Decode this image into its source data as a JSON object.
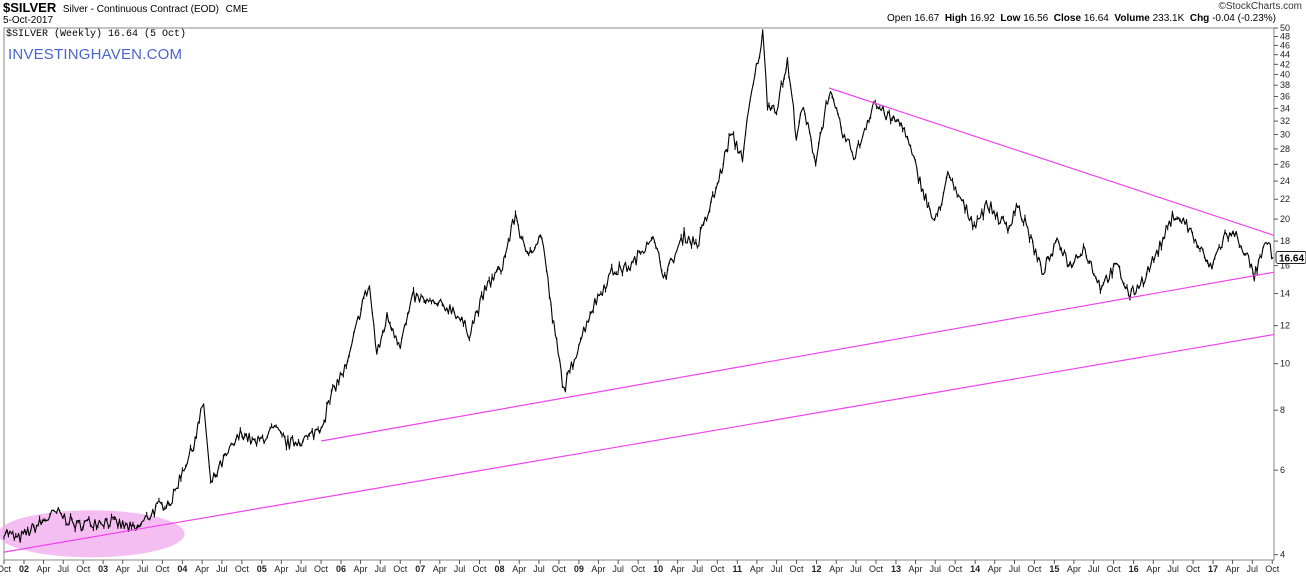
{
  "header": {
    "symbol": "$SILVER",
    "description": "Silver - Continuous Contract (EOD)",
    "exchange": "CME",
    "date": "5-Oct-2017",
    "brand": "©StockCharts.com",
    "plot_label": "$SILVER (Weekly) 16.64 (5 Oct)",
    "ohlc": {
      "open_label": "Open",
      "open": "16.67",
      "high_label": "High",
      "high": "16.92",
      "low_label": "Low",
      "low": "16.56",
      "close_label": "Close",
      "close": "16.64",
      "volume_label": "Volume",
      "volume": "233.1K",
      "chg_label": "Chg",
      "chg": "-0.04 (-0.23%)"
    }
  },
  "watermark": "INVESTINGHAVEN.COM",
  "last_price_label": "16.64",
  "colors": {
    "price": "#000000",
    "trendline": "#ee44ee",
    "highlight": "#f2a8ee",
    "grid": "#e8e8e8"
  },
  "chart_data": {
    "type": "line",
    "y_scale": "log",
    "ylim": [
      3.9,
      50
    ],
    "yticks": [
      4,
      6,
      8,
      10,
      12,
      14,
      16,
      18,
      20,
      22,
      24,
      26,
      28,
      30,
      32,
      34,
      36,
      38,
      40,
      42,
      44,
      46,
      48,
      50
    ],
    "x_range": [
      "2001-10-01",
      "2017-10-09"
    ],
    "xticks": [
      [
        "2001-10-01",
        "Oct"
      ],
      [
        "2002-01-01",
        "02"
      ],
      [
        "2002-04-01",
        "Apr"
      ],
      [
        "2002-07-01",
        "Jul"
      ],
      [
        "2002-10-01",
        "Oct"
      ],
      [
        "2003-01-01",
        "03"
      ],
      [
        "2003-04-01",
        "Apr"
      ],
      [
        "2003-07-01",
        "Jul"
      ],
      [
        "2003-10-01",
        "Oct"
      ],
      [
        "2004-01-01",
        "04"
      ],
      [
        "2004-04-01",
        "Apr"
      ],
      [
        "2004-07-01",
        "Jul"
      ],
      [
        "2004-10-01",
        "Oct"
      ],
      [
        "2005-01-01",
        "05"
      ],
      [
        "2005-04-01",
        "Apr"
      ],
      [
        "2005-07-01",
        "Jul"
      ],
      [
        "2005-10-01",
        "Oct"
      ],
      [
        "2006-01-01",
        "06"
      ],
      [
        "2006-04-01",
        "Apr"
      ],
      [
        "2006-07-01",
        "Jul"
      ],
      [
        "2006-10-01",
        "Oct"
      ],
      [
        "2007-01-01",
        "07"
      ],
      [
        "2007-04-01",
        "Apr"
      ],
      [
        "2007-07-01",
        "Jul"
      ],
      [
        "2007-10-01",
        "Oct"
      ],
      [
        "2008-01-01",
        "08"
      ],
      [
        "2008-04-01",
        "Apr"
      ],
      [
        "2008-07-01",
        "Jul"
      ],
      [
        "2008-10-01",
        "Oct"
      ],
      [
        "2009-01-01",
        "09"
      ],
      [
        "2009-04-01",
        "Apr"
      ],
      [
        "2009-07-01",
        "Jul"
      ],
      [
        "2009-10-01",
        "Oct"
      ],
      [
        "2010-01-01",
        "10"
      ],
      [
        "2010-04-01",
        "Apr"
      ],
      [
        "2010-07-01",
        "Jul"
      ],
      [
        "2010-10-01",
        "Oct"
      ],
      [
        "2011-01-01",
        "11"
      ],
      [
        "2011-04-01",
        "Apr"
      ],
      [
        "2011-07-01",
        "Jul"
      ],
      [
        "2011-10-01",
        "Oct"
      ],
      [
        "2012-01-01",
        "12"
      ],
      [
        "2012-04-01",
        "Apr"
      ],
      [
        "2012-07-01",
        "Jul"
      ],
      [
        "2012-10-01",
        "Oct"
      ],
      [
        "2013-01-01",
        "13"
      ],
      [
        "2013-04-01",
        "Apr"
      ],
      [
        "2013-07-01",
        "Jul"
      ],
      [
        "2013-10-01",
        "Oct"
      ],
      [
        "2014-01-01",
        "14"
      ],
      [
        "2014-04-01",
        "Apr"
      ],
      [
        "2014-07-01",
        "Jul"
      ],
      [
        "2014-10-01",
        "Oct"
      ],
      [
        "2015-01-01",
        "15"
      ],
      [
        "2015-04-01",
        "Apr"
      ],
      [
        "2015-07-01",
        "Jul"
      ],
      [
        "2015-10-01",
        "Oct"
      ],
      [
        "2016-01-01",
        "16"
      ],
      [
        "2016-04-01",
        "Apr"
      ],
      [
        "2016-07-01",
        "Jul"
      ],
      [
        "2016-10-01",
        "Oct"
      ],
      [
        "2017-01-01",
        "17"
      ],
      [
        "2017-04-01",
        "Apr"
      ],
      [
        "2017-07-01",
        "Jul"
      ],
      [
        "2017-10-01",
        "Oct"
      ]
    ],
    "series": [
      {
        "points": [
          [
            "2001-10-01",
            4.5
          ],
          [
            "2001-12-01",
            4.3
          ],
          [
            "2002-02-01",
            4.5
          ],
          [
            "2002-05-01",
            4.8
          ],
          [
            "2002-06-01",
            4.9
          ],
          [
            "2002-09-01",
            4.6
          ],
          [
            "2002-12-01",
            4.7
          ],
          [
            "2003-02-01",
            4.7
          ],
          [
            "2003-04-01",
            4.6
          ],
          [
            "2003-06-01",
            4.5
          ],
          [
            "2003-09-01",
            5.0
          ],
          [
            "2003-11-15",
            5.2
          ],
          [
            "2004-01-01",
            6.0
          ],
          [
            "2004-02-15",
            6.6
          ],
          [
            "2004-04-08",
            8.3
          ],
          [
            "2004-05-10",
            5.6
          ],
          [
            "2004-07-01",
            6.2
          ],
          [
            "2004-10-01",
            7.2
          ],
          [
            "2004-12-01",
            6.8
          ],
          [
            "2005-03-01",
            7.3
          ],
          [
            "2005-05-01",
            6.8
          ],
          [
            "2005-08-01",
            7.0
          ],
          [
            "2005-10-01",
            7.4
          ],
          [
            "2005-12-01",
            8.9
          ],
          [
            "2006-02-01",
            10.0
          ],
          [
            "2006-04-10",
            13.5
          ],
          [
            "2006-05-12",
            14.5
          ],
          [
            "2006-06-15",
            10.4
          ],
          [
            "2006-08-01",
            12.5
          ],
          [
            "2006-10-01",
            11.0
          ],
          [
            "2006-12-01",
            13.8
          ],
          [
            "2007-03-01",
            13.3
          ],
          [
            "2007-06-01",
            13.0
          ],
          [
            "2007-08-15",
            11.6
          ],
          [
            "2007-11-01",
            14.4
          ],
          [
            "2008-01-15",
            16.0
          ],
          [
            "2008-03-15",
            20.5
          ],
          [
            "2008-05-01",
            16.8
          ],
          [
            "2008-07-15",
            18.5
          ],
          [
            "2008-09-01",
            12.5
          ],
          [
            "2008-10-24",
            8.8
          ],
          [
            "2009-01-01",
            11.0
          ],
          [
            "2009-03-01",
            13.0
          ],
          [
            "2009-06-01",
            15.5
          ],
          [
            "2009-09-01",
            16.0
          ],
          [
            "2009-12-01",
            18.5
          ],
          [
            "2010-02-01",
            15.2
          ],
          [
            "2010-05-01",
            18.5
          ],
          [
            "2010-07-01",
            17.7
          ],
          [
            "2010-10-01",
            23.5
          ],
          [
            "2010-12-01",
            30.0
          ],
          [
            "2011-01-25",
            27.0
          ],
          [
            "2011-03-01",
            35.0
          ],
          [
            "2011-04-28",
            48.5
          ],
          [
            "2011-05-20",
            35.0
          ],
          [
            "2011-07-01",
            34.0
          ],
          [
            "2011-08-20",
            42.5
          ],
          [
            "2011-09-30",
            30.0
          ],
          [
            "2011-11-01",
            34.0
          ],
          [
            "2011-12-28",
            26.5
          ],
          [
            "2012-02-28",
            37.0
          ],
          [
            "2012-05-01",
            30.0
          ],
          [
            "2012-06-28",
            27.0
          ],
          [
            "2012-09-20",
            35.0
          ],
          [
            "2012-12-01",
            32.5
          ],
          [
            "2013-02-01",
            31.5
          ],
          [
            "2013-04-15",
            24.5
          ],
          [
            "2013-06-28",
            19.5
          ],
          [
            "2013-08-28",
            24.5
          ],
          [
            "2013-12-28",
            19.5
          ],
          [
            "2014-02-28",
            21.5
          ],
          [
            "2014-06-01",
            19.0
          ],
          [
            "2014-07-10",
            21.5
          ],
          [
            "2014-09-01",
            19.0
          ],
          [
            "2014-11-05",
            15.5
          ],
          [
            "2015-01-20",
            18.0
          ],
          [
            "2015-03-15",
            16.0
          ],
          [
            "2015-05-15",
            17.5
          ],
          [
            "2015-08-01",
            14.5
          ],
          [
            "2015-10-15",
            16.0
          ],
          [
            "2015-12-15",
            13.8
          ],
          [
            "2016-02-15",
            15.0
          ],
          [
            "2016-05-01",
            17.5
          ],
          [
            "2016-07-05",
            20.5
          ],
          [
            "2016-09-01",
            19.5
          ],
          [
            "2016-12-20",
            15.8
          ],
          [
            "2017-02-25",
            18.5
          ],
          [
            "2017-04-18",
            18.5
          ],
          [
            "2017-06-01",
            17.0
          ],
          [
            "2017-07-10",
            15.2
          ],
          [
            "2017-09-08",
            18.0
          ],
          [
            "2017-10-05",
            16.64
          ]
        ]
      }
    ],
    "trendlines": [
      {
        "from": [
          "2012-02-28",
          37.5
        ],
        "to": [
          "2017-10-09",
          18.5
        ]
      },
      {
        "from": [
          "2005-10-01",
          6.9
        ],
        "to": [
          "2017-10-09",
          15.5
        ]
      },
      {
        "from": [
          "2001-10-01",
          4.05
        ],
        "to": [
          "2017-10-09",
          11.5
        ]
      }
    ],
    "highlight_zone": {
      "x": [
        "2001-10-01",
        "2003-12-15"
      ],
      "y": [
        3.95,
        4.95
      ]
    },
    "annotations": []
  }
}
